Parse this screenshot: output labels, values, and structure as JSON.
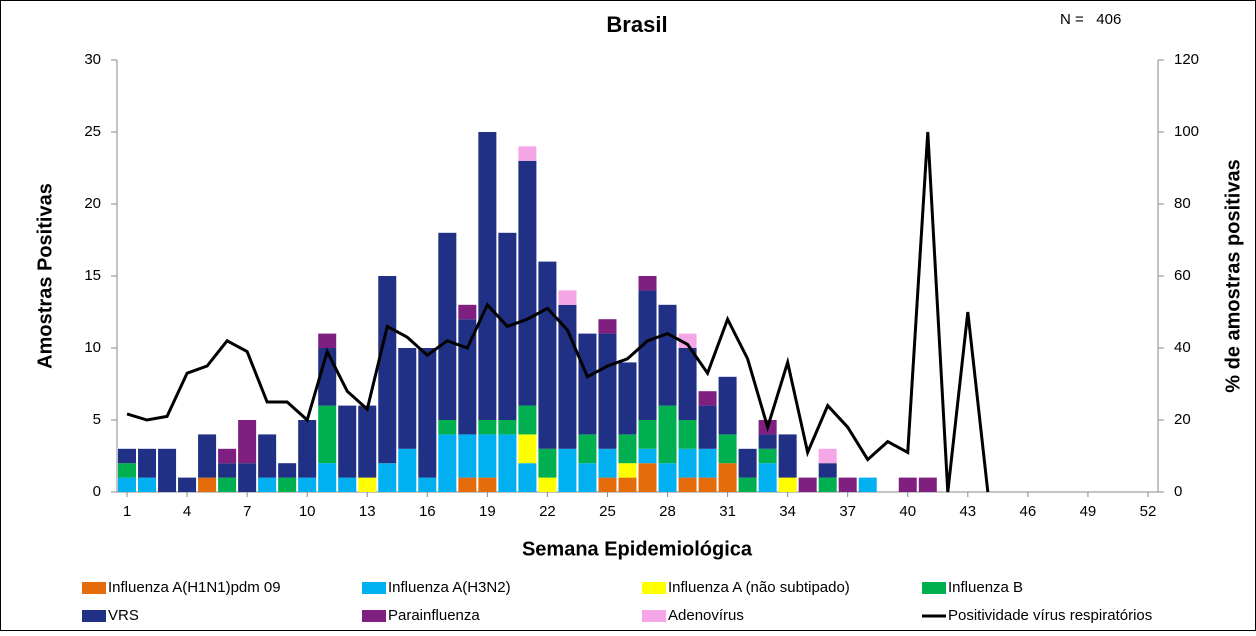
{
  "chart_data": {
    "type": "bar",
    "stacked": true,
    "title": "Brasil",
    "annotation": "N =   406",
    "xlabel": "Semana Epidemiológica",
    "ylabel": "Amostras Positivas",
    "y2label": "% de amostras positivas",
    "categories": [
      1,
      null,
      null,
      4,
      null,
      null,
      7,
      null,
      null,
      10,
      null,
      null,
      13,
      null,
      null,
      16,
      null,
      null,
      19,
      null,
      null,
      22,
      null,
      null,
      25,
      null,
      null,
      28,
      null,
      null,
      31,
      null,
      null,
      34,
      null,
      null,
      37,
      null,
      null,
      40,
      null,
      null,
      43,
      null,
      null,
      46,
      null,
      null,
      49,
      null,
      null,
      52
    ],
    "ylim": [
      0,
      30
    ],
    "yticks": [
      0,
      5,
      10,
      15,
      20,
      25,
      30
    ],
    "y2lim": [
      0,
      120
    ],
    "y2ticks": [
      0,
      20,
      40,
      60,
      80,
      100,
      120
    ],
    "grid": false,
    "legend": "bottom",
    "series": [
      {
        "name": "Influenza A(H1N1)pdm 09",
        "color": "#e46c0a",
        "values": [
          0,
          0,
          0,
          0,
          1,
          0,
          0,
          0,
          0,
          0,
          0,
          0,
          0,
          0,
          0,
          0,
          0,
          1,
          1,
          0,
          0,
          0,
          0,
          0,
          1,
          1,
          2,
          0,
          1,
          1,
          2,
          0,
          0,
          0,
          0,
          0,
          0,
          0,
          0,
          0,
          0,
          0,
          0,
          0,
          0,
          0,
          0,
          0,
          0,
          0,
          0,
          0
        ]
      },
      {
        "name": "Influenza A(H3N2)",
        "color": "#00b0f0",
        "values": [
          1,
          1,
          0,
          0,
          0,
          0,
          0,
          1,
          0,
          1,
          2,
          1,
          0,
          2,
          3,
          1,
          4,
          3,
          3,
          4,
          2,
          0,
          3,
          2,
          2,
          0,
          1,
          2,
          2,
          2,
          0,
          0,
          2,
          0,
          0,
          0,
          0,
          1,
          0,
          0,
          0,
          0,
          0,
          0,
          0,
          0,
          0,
          0,
          0,
          0,
          0,
          0
        ]
      },
      {
        "name": "Influenza A (não subtipado)",
        "color": "#ffff00",
        "values": [
          0,
          0,
          0,
          0,
          0,
          0,
          0,
          0,
          0,
          0,
          0,
          0,
          1,
          0,
          0,
          0,
          0,
          0,
          0,
          0,
          2,
          1,
          0,
          0,
          0,
          1,
          0,
          0,
          0,
          0,
          0,
          0,
          0,
          1,
          0,
          0,
          0,
          0,
          0,
          0,
          0,
          0,
          0,
          0,
          0,
          0,
          0,
          0,
          0,
          0,
          0,
          0
        ]
      },
      {
        "name": "Influenza B",
        "color": "#00b050",
        "values": [
          1,
          0,
          0,
          0,
          0,
          1,
          0,
          0,
          1,
          0,
          4,
          0,
          0,
          0,
          0,
          0,
          1,
          0,
          1,
          1,
          2,
          2,
          0,
          2,
          0,
          2,
          2,
          4,
          2,
          0,
          2,
          1,
          1,
          0,
          0,
          1,
          0,
          0,
          0,
          0,
          0,
          0,
          0,
          0,
          0,
          0,
          0,
          0,
          0,
          0,
          0,
          0
        ]
      },
      {
        "name": "VRS",
        "color": "#203185",
        "values": [
          1,
          2,
          3,
          1,
          3,
          1,
          2,
          3,
          1,
          4,
          4,
          5,
          5,
          13,
          7,
          9,
          13,
          8,
          20,
          13,
          17,
          13,
          10,
          7,
          8,
          5,
          9,
          7,
          5,
          3,
          4,
          2,
          1,
          3,
          0,
          1,
          0,
          0,
          0,
          0,
          0,
          0,
          0,
          0,
          0,
          0,
          0,
          0,
          0,
          0,
          0,
          0
        ]
      },
      {
        "name": "Parainfluenza",
        "color": "#7f1f7f",
        "values": [
          0,
          0,
          0,
          0,
          0,
          1,
          3,
          0,
          0,
          0,
          1,
          0,
          0,
          0,
          0,
          0,
          0,
          1,
          0,
          0,
          0,
          0,
          0,
          0,
          1,
          0,
          1,
          0,
          0,
          1,
          0,
          0,
          1,
          0,
          1,
          0,
          1,
          0,
          0,
          1,
          1,
          0,
          0,
          0,
          0,
          0,
          0,
          0,
          0,
          0,
          0,
          0
        ]
      },
      {
        "name": "Adenovírus",
        "color": "#f4a6e6",
        "values": [
          0,
          0,
          0,
          0,
          0,
          0,
          0,
          0,
          0,
          0,
          0,
          0,
          0,
          0,
          0,
          0,
          0,
          0,
          0,
          0,
          1,
          0,
          1,
          0,
          0,
          0,
          0,
          0,
          1,
          0,
          0,
          0,
          0,
          0,
          0,
          1,
          0,
          0,
          0,
          0,
          0,
          0,
          0,
          0,
          0,
          0,
          0,
          0,
          0,
          0,
          0,
          0
        ]
      },
      {
        "name": "Positividade vírus respiratórios",
        "color": "#000000",
        "type": "line",
        "axis": "y2",
        "values": [
          21.7,
          20,
          21,
          33,
          35,
          42,
          39,
          25,
          25,
          20,
          39,
          28,
          23,
          46,
          43,
          38,
          42,
          40,
          52,
          46,
          48,
          51,
          45,
          32,
          35,
          37,
          42,
          44,
          41,
          33,
          48,
          37,
          18,
          36,
          11,
          24,
          18,
          9,
          14,
          11,
          100,
          0,
          50,
          0,
          null,
          null,
          null,
          null,
          null,
          null,
          null,
          null
        ]
      }
    ]
  }
}
